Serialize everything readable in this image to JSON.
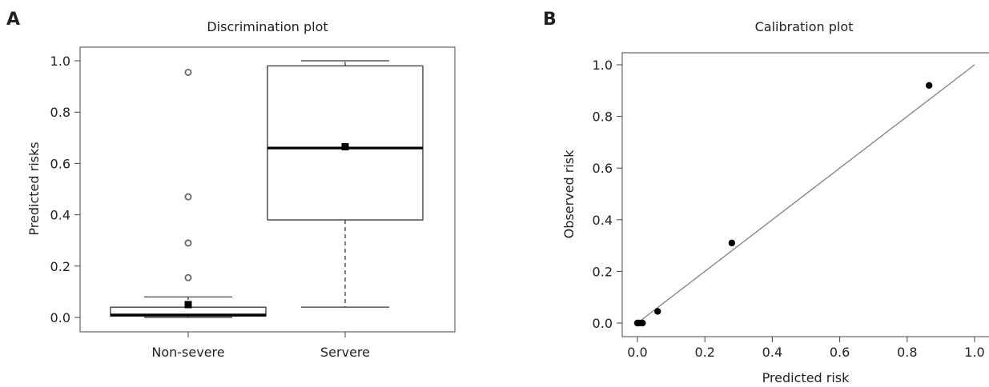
{
  "chart_data": [
    {
      "panel_label": "A",
      "type": "box",
      "title": "Discrimination plot",
      "xlabel": "",
      "ylabel": "Predicted risks",
      "ylim": [
        0.0,
        1.0
      ],
      "yticks": [
        "0.0",
        "0.2",
        "0.4",
        "0.6",
        "0.8",
        "1.0"
      ],
      "categories": [
        "Non-severe",
        "Servere"
      ],
      "boxes": [
        {
          "name": "Non-severe",
          "whisker_low": 0.0,
          "q1": 0.005,
          "median": 0.01,
          "q3": 0.04,
          "whisker_high": 0.08,
          "mean": 0.05,
          "outliers": [
            0.155,
            0.29,
            0.47,
            0.955
          ]
        },
        {
          "name": "Servere",
          "whisker_low": 0.04,
          "q1": 0.38,
          "median": 0.66,
          "q3": 0.98,
          "whisker_high": 1.0,
          "mean": 0.665,
          "outliers": []
        }
      ]
    },
    {
      "panel_label": "B",
      "type": "scatter",
      "title": "Calibration plot",
      "xlabel": "Predicted risk",
      "ylabel": "Observed risk",
      "xlim": [
        0.0,
        1.0
      ],
      "ylim": [
        0.0,
        1.0
      ],
      "xticks": [
        "0.0",
        "0.2",
        "0.4",
        "0.6",
        "0.8",
        "1.0"
      ],
      "yticks": [
        "0.0",
        "0.2",
        "0.4",
        "0.6",
        "0.8",
        "1.0"
      ],
      "points": [
        {
          "x": 0.0,
          "y": 0.0
        },
        {
          "x": 0.005,
          "y": 0.0
        },
        {
          "x": 0.015,
          "y": 0.0
        },
        {
          "x": 0.06,
          "y": 0.045
        },
        {
          "x": 0.28,
          "y": 0.31
        },
        {
          "x": 0.865,
          "y": 0.92
        }
      ],
      "reference_line": {
        "from": [
          0.0,
          0.0
        ],
        "to": [
          1.0,
          1.0
        ]
      }
    }
  ]
}
